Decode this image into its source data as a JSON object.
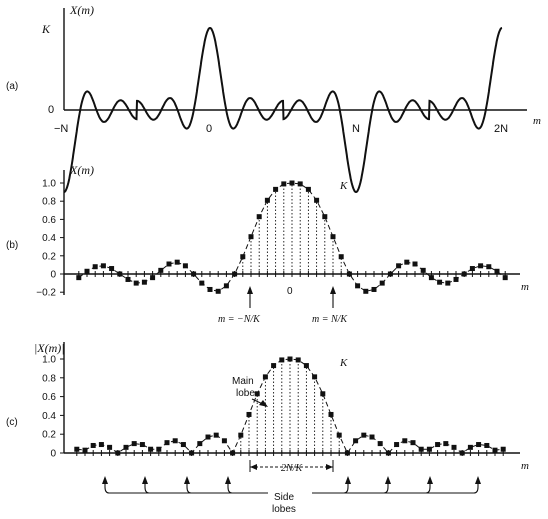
{
  "panels": {
    "a": {
      "label": "(a)",
      "ylabel": "X(m)",
      "xlabel": "m",
      "k_label": "K",
      "zero_label": "0",
      "ticks": [
        "−N",
        "0",
        "N",
        "2N"
      ]
    },
    "b": {
      "label": "(b)",
      "ylabel": "X(m)",
      "xlabel": "m",
      "k_label": "K",
      "yticks": [
        "1.0",
        "0.8",
        "0.6",
        "0.4",
        "0.2",
        "0",
        "−0.2"
      ],
      "xtick_zero": "0",
      "annot_left": "m = −N/K",
      "annot_right": "m = N/K"
    },
    "c": {
      "label": "(c)",
      "ylabel": "|X(m)|",
      "xlabel": "m",
      "k_label": "K",
      "yticks": [
        "1.0",
        "0.8",
        "0.6",
        "0.4",
        "0.2",
        "0"
      ],
      "main_lobe": "Main lobe",
      "width_label": "2N/K",
      "side_lobes": "Side lobes"
    }
  },
  "chart_data": [
    {
      "type": "line",
      "panel": "a",
      "description_source": "periodic sinc (Dirichlet kernel) X(m) over one plus periods",
      "x_ticks": [
        "−N",
        "0",
        "N",
        "2N"
      ],
      "x_range_periods": [
        -1,
        2
      ],
      "peak_positions_periods": [
        -1,
        0,
        1,
        2
      ],
      "peak_value_label": "K",
      "zeros_per_period": 8
    },
    {
      "type": "scatter",
      "panel": "b",
      "ylabel": "X(m)",
      "ylim": [
        -0.2,
        1.0
      ],
      "xlabel": "m",
      "x": [
        -26,
        -25,
        -24,
        -23,
        -22,
        -21,
        -20,
        -19,
        -18,
        -17,
        -16,
        -15,
        -14,
        -13,
        -12,
        -11,
        -10,
        -9,
        -8,
        -7,
        -6,
        -5,
        -4,
        -3,
        -2,
        -1,
        0,
        1,
        2,
        3,
        4,
        5,
        6,
        7,
        8,
        9,
        10,
        11,
        12,
        13,
        14,
        15,
        16,
        17,
        18,
        19,
        20,
        21,
        22,
        23,
        24,
        25,
        26
      ],
      "values": [
        -0.04,
        0.03,
        0.08,
        0.09,
        0.06,
        0.0,
        -0.06,
        -0.1,
        -0.09,
        -0.04,
        0.04,
        0.11,
        0.13,
        0.09,
        0.0,
        -0.1,
        -0.17,
        -0.19,
        -0.13,
        0.0,
        0.19,
        0.41,
        0.63,
        0.81,
        0.93,
        0.99,
        1.0,
        0.99,
        0.93,
        0.81,
        0.63,
        0.41,
        0.19,
        0.0,
        -0.13,
        -0.19,
        -0.17,
        -0.1,
        0.0,
        0.09,
        0.13,
        0.11,
        0.04,
        -0.04,
        -0.09,
        -0.1,
        -0.06,
        0.0,
        0.06,
        0.09,
        0.08,
        0.03,
        -0.04
      ],
      "markers": "squares",
      "envelope": "dashed"
    },
    {
      "type": "scatter",
      "panel": "c",
      "ylabel": "|X(m)|",
      "ylim": [
        0,
        1.0
      ],
      "xlabel": "m",
      "x": [
        -26,
        -25,
        -24,
        -23,
        -22,
        -21,
        -20,
        -19,
        -18,
        -17,
        -16,
        -15,
        -14,
        -13,
        -12,
        -11,
        -10,
        -9,
        -8,
        -7,
        -6,
        -5,
        -4,
        -3,
        -2,
        -1,
        0,
        1,
        2,
        3,
        4,
        5,
        6,
        7,
        8,
        9,
        10,
        11,
        12,
        13,
        14,
        15,
        16,
        17,
        18,
        19,
        20,
        21,
        22,
        23,
        24,
        25,
        26
      ],
      "values": [
        0.04,
        0.03,
        0.08,
        0.09,
        0.06,
        0.0,
        0.06,
        0.1,
        0.09,
        0.04,
        0.04,
        0.11,
        0.13,
        0.09,
        0.0,
        0.1,
        0.17,
        0.19,
        0.13,
        0.0,
        0.19,
        0.41,
        0.63,
        0.81,
        0.93,
        0.99,
        1.0,
        0.99,
        0.93,
        0.81,
        0.63,
        0.41,
        0.19,
        0.0,
        0.13,
        0.19,
        0.17,
        0.1,
        0.0,
        0.09,
        0.13,
        0.11,
        0.04,
        0.04,
        0.09,
        0.1,
        0.06,
        0.0,
        0.06,
        0.09,
        0.08,
        0.03,
        0.04
      ],
      "markers": "squares",
      "envelope": "dashed"
    }
  ]
}
